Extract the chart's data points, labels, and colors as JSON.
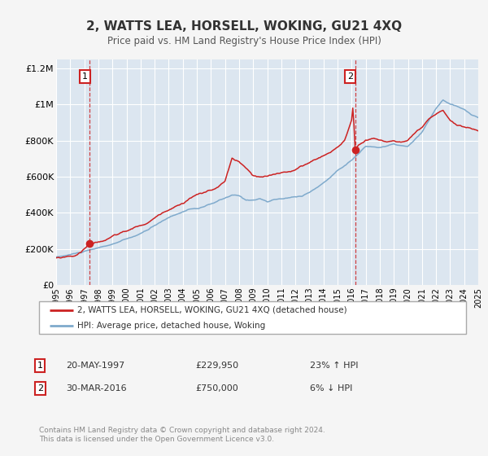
{
  "title": "2, WATTS LEA, HORSELL, WOKING, GU21 4XQ",
  "subtitle": "Price paid vs. HM Land Registry's House Price Index (HPI)",
  "xlim": [
    1995,
    2025
  ],
  "ylim": [
    0,
    1250000
  ],
  "yticks": [
    0,
    200000,
    400000,
    600000,
    800000,
    1000000,
    1200000
  ],
  "ytick_labels": [
    "£0",
    "£200K",
    "£400K",
    "£600K",
    "£800K",
    "£1M",
    "£1.2M"
  ],
  "sale1_date": 1997.38,
  "sale1_price": 229950,
  "sale2_date": 2016.25,
  "sale2_price": 750000,
  "house_color": "#cc2222",
  "hpi_color": "#7faacc",
  "plot_bg_color": "#dce6f0",
  "grid_color": "#ffffff",
  "legend_label_house": "2, WATTS LEA, HORSELL, WOKING, GU21 4XQ (detached house)",
  "legend_label_hpi": "HPI: Average price, detached house, Woking",
  "annotation1_date": "20-MAY-1997",
  "annotation1_price": "£229,950",
  "annotation1_hpi": "23% ↑ HPI",
  "annotation2_date": "30-MAR-2016",
  "annotation2_price": "£750,000",
  "annotation2_hpi": "6% ↓ HPI",
  "footer": "Contains HM Land Registry data © Crown copyright and database right 2024.\nThis data is licensed under the Open Government Licence v3.0.",
  "hpi_anchors_x": [
    1995.0,
    1996.0,
    1997.0,
    1997.4,
    1998.5,
    1999.5,
    2000.5,
    2001.5,
    2002.5,
    2003.5,
    2004.5,
    2005.5,
    2006.5,
    2007.5,
    2008.0,
    2008.5,
    2009.0,
    2009.5,
    2010.0,
    2010.5,
    2011.5,
    2012.5,
    2013.5,
    2014.5,
    2015.0,
    2016.0,
    2016.5,
    2017.0,
    2018.0,
    2019.0,
    2020.0,
    2021.0,
    2022.0,
    2022.5,
    2023.0,
    2023.5,
    2024.0,
    2024.5,
    2025.0
  ],
  "hpi_anchors_y": [
    155000,
    168000,
    185000,
    190000,
    210000,
    235000,
    260000,
    295000,
    345000,
    385000,
    415000,
    425000,
    455000,
    485000,
    480000,
    455000,
    460000,
    468000,
    450000,
    460000,
    468000,
    482000,
    525000,
    585000,
    625000,
    685000,
    720000,
    760000,
    755000,
    770000,
    755000,
    830000,
    960000,
    1010000,
    985000,
    970000,
    950000,
    925000,
    905000
  ],
  "house_anchors_x": [
    1995.0,
    1996.5,
    1997.38,
    1997.5,
    1998.5,
    1999.5,
    2000.5,
    2001.5,
    2002.5,
    2003.0,
    2003.5,
    2004.0,
    2004.5,
    2005.0,
    2005.5,
    2006.0,
    2006.5,
    2007.0,
    2007.5,
    2008.0,
    2008.5,
    2009.0,
    2009.5,
    2010.0,
    2010.5,
    2011.0,
    2011.5,
    2012.0,
    2012.5,
    2013.0,
    2013.5,
    2014.0,
    2014.5,
    2015.0,
    2015.5,
    2016.0,
    2016.1,
    2016.25,
    2016.5,
    2017.0,
    2017.5,
    2018.0,
    2018.5,
    2019.0,
    2019.5,
    2020.0,
    2020.5,
    2021.0,
    2021.5,
    2022.0,
    2022.5,
    2023.0,
    2023.5,
    2024.0,
    2024.5,
    2025.0
  ],
  "house_anchors_y": [
    150000,
    170000,
    229950,
    233000,
    258000,
    288000,
    315000,
    345000,
    395000,
    425000,
    445000,
    465000,
    492000,
    512000,
    522000,
    537000,
    548000,
    583000,
    705000,
    685000,
    645000,
    603000,
    593000,
    592000,
    602000,
    612000,
    623000,
    632000,
    652000,
    672000,
    692000,
    713000,
    733000,
    762000,
    802000,
    905000,
    985000,
    750000,
    772000,
    802000,
    812000,
    802000,
    792000,
    802000,
    792000,
    802000,
    832000,
    862000,
    902000,
    922000,
    942000,
    892000,
    862000,
    852000,
    842000,
    832000
  ]
}
